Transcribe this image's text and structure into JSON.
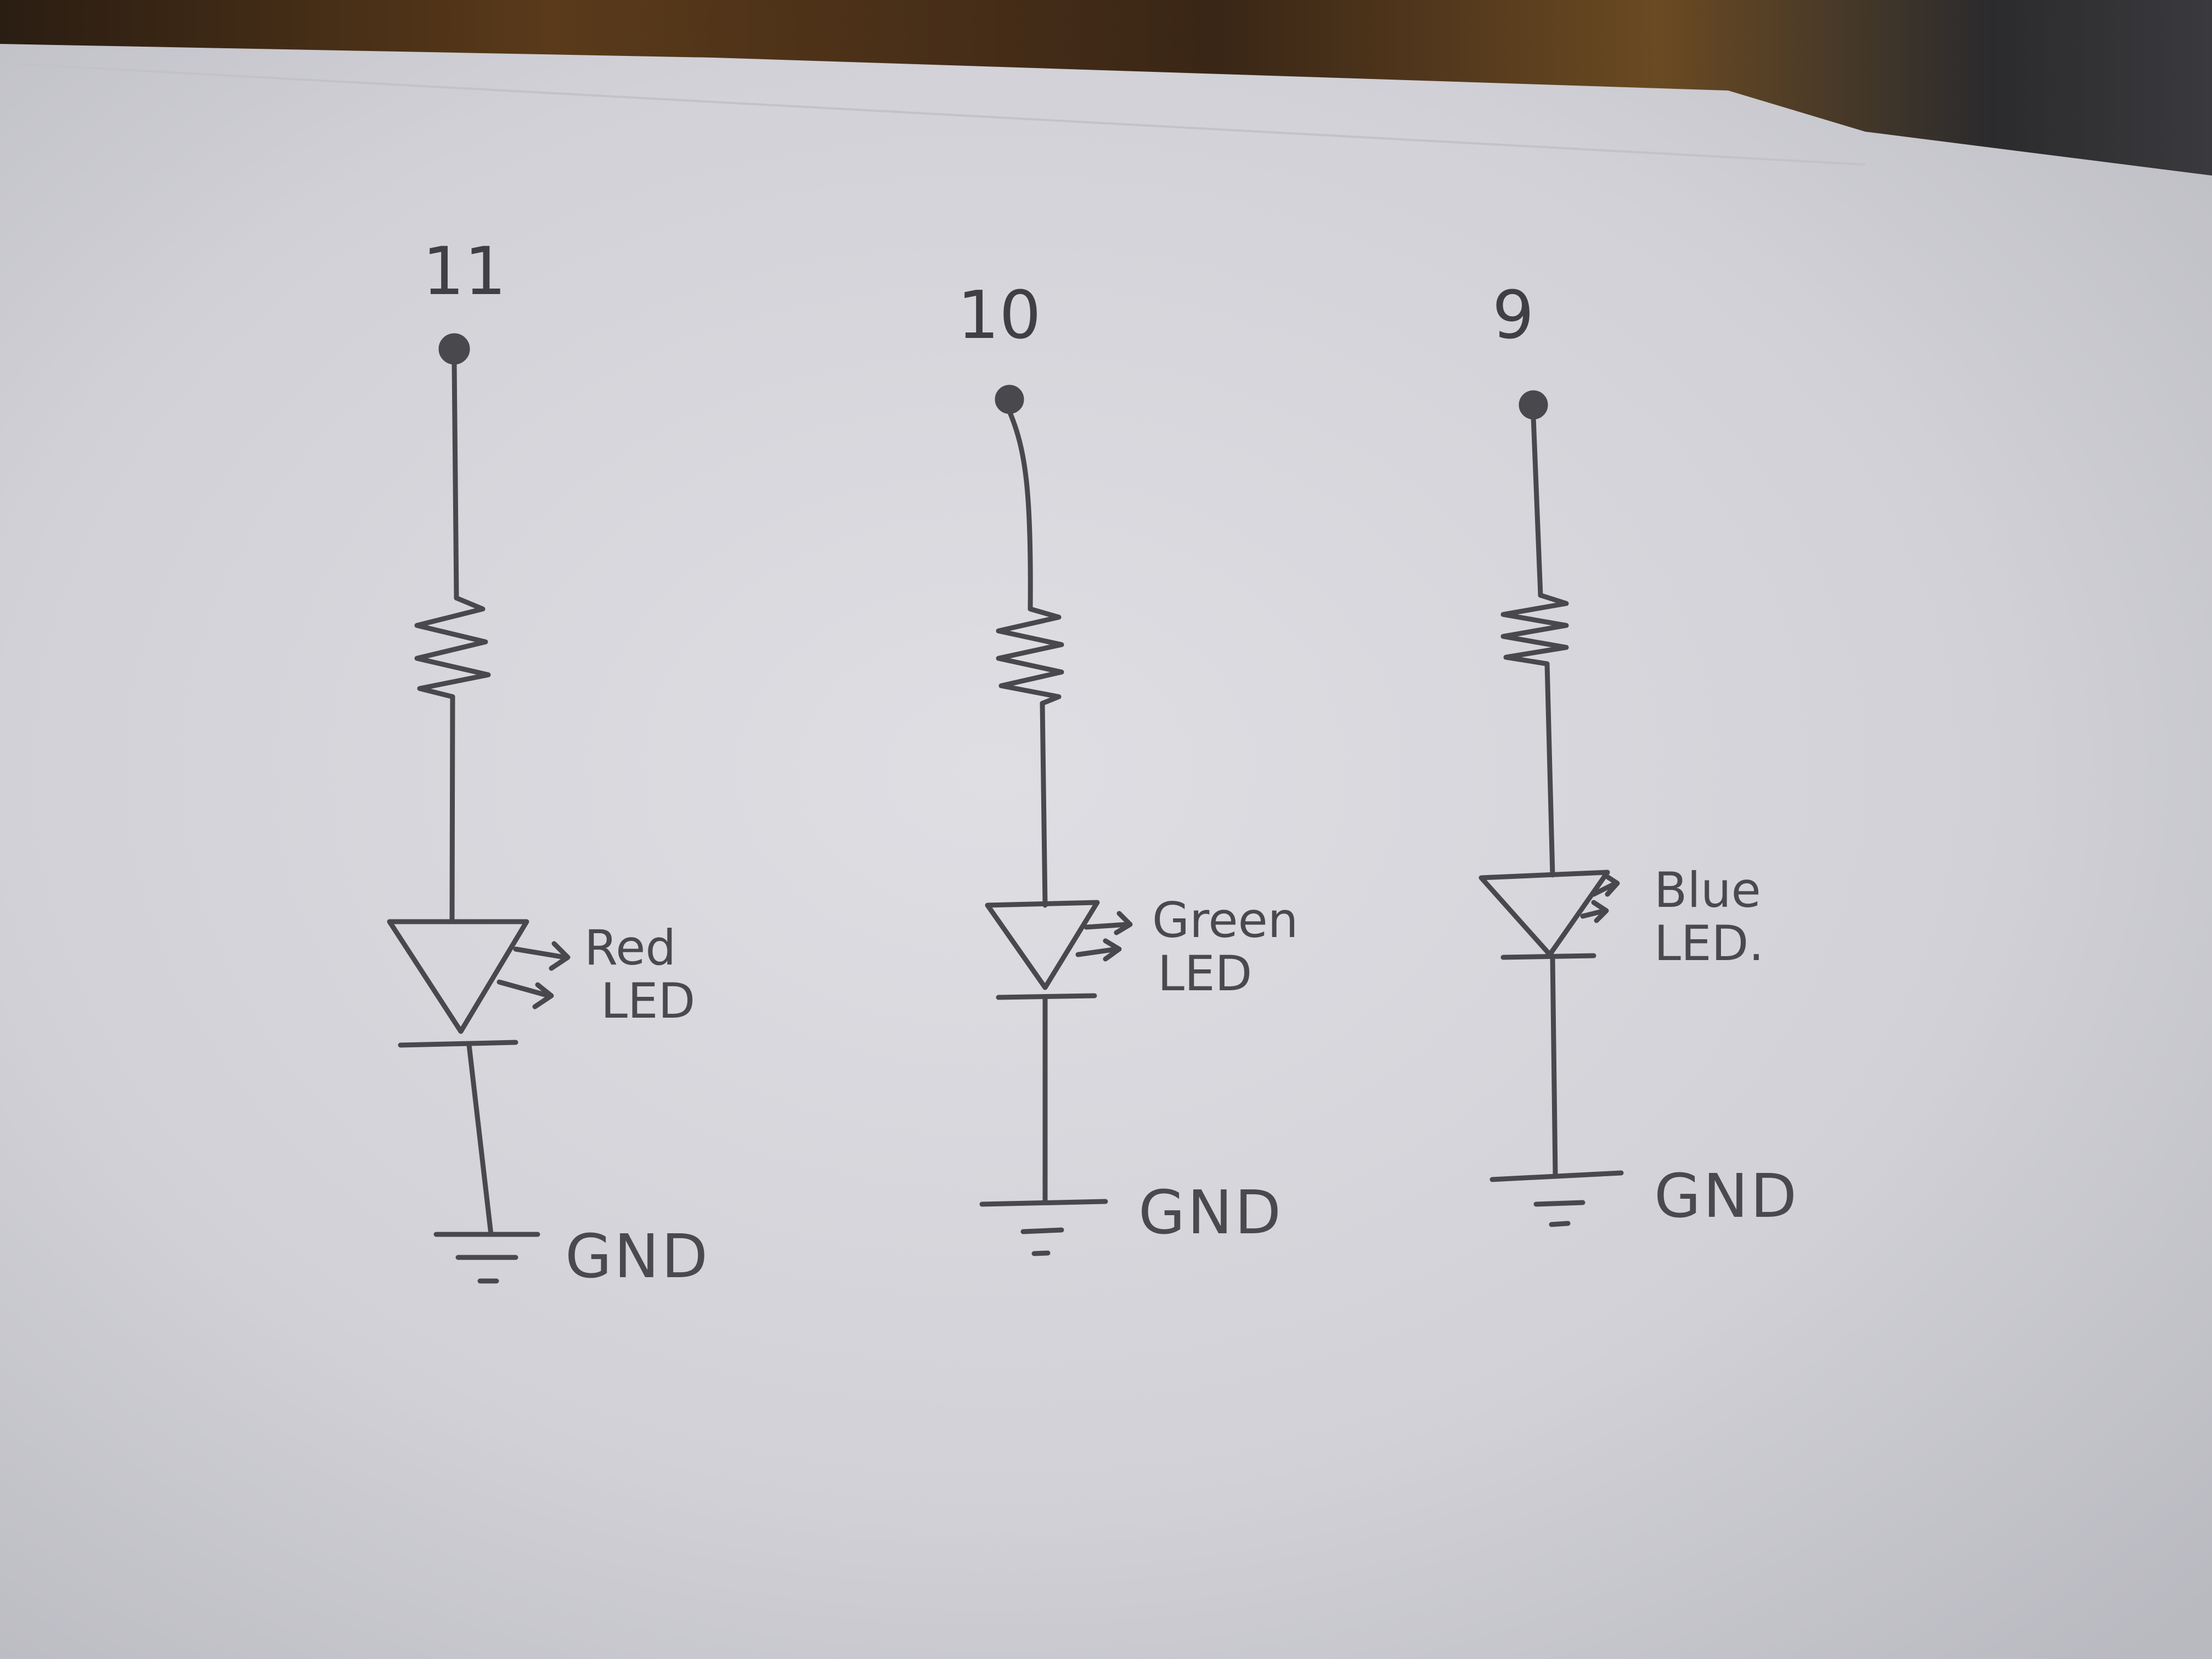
{
  "colors": {
    "pencil": "#48484d",
    "paper": "#d6d6dc",
    "background": "#2a1d12"
  },
  "circuits": [
    {
      "pin": "11",
      "led_line1": "Red",
      "led_line2": "LED",
      "ground": "GND"
    },
    {
      "pin": "10",
      "led_line1": "Green",
      "led_line2": "LED",
      "ground": "GND"
    },
    {
      "pin": "9",
      "led_line1": "Blue",
      "led_line2": "LED.",
      "ground": "GND"
    }
  ]
}
